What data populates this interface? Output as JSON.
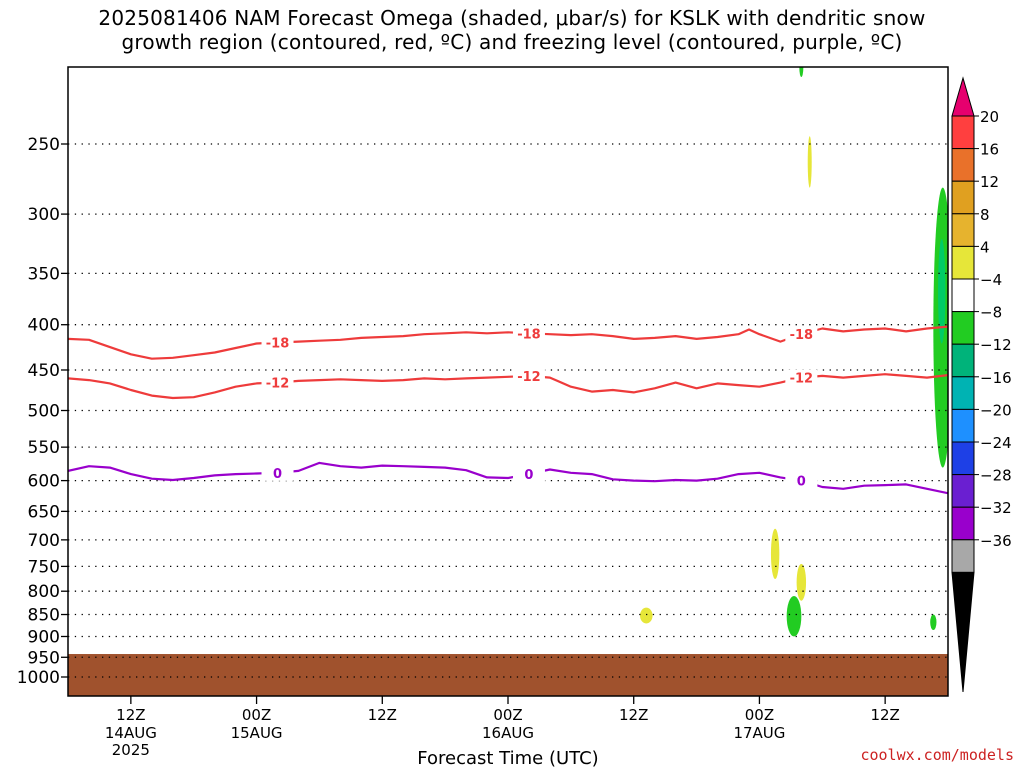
{
  "title": "2025081406 NAM Forecast Omega (shaded, μbar/s) for KSLK with dendritic snow\ngrowth region (contoured, red, ºC) and freezing level (contoured, purple, ºC)",
  "credit": "coolwx.com/models",
  "chart_data": {
    "type": "contour",
    "xlabel": "Forecast Time (UTC)",
    "ylabel": "",
    "y_scale": "log-pressure (hPa), inverted",
    "ylim": [
      1050,
      200
    ],
    "xlim_hours": [
      0,
      84
    ],
    "grid": true,
    "x_ticks": [
      {
        "hour": 6,
        "line1": "12Z",
        "line2": "14AUG",
        "line3": "2025"
      },
      {
        "hour": 18,
        "line1": "00Z",
        "line2": "15AUG",
        "line3": ""
      },
      {
        "hour": 30,
        "line1": "12Z",
        "line2": "",
        "line3": ""
      },
      {
        "hour": 42,
        "line1": "00Z",
        "line2": "16AUG",
        "line3": ""
      },
      {
        "hour": 54,
        "line1": "12Z",
        "line2": "",
        "line3": ""
      },
      {
        "hour": 66,
        "line1": "00Z",
        "line2": "17AUG",
        "line3": ""
      },
      {
        "hour": 78,
        "line1": "12Z",
        "line2": "",
        "line3": ""
      }
    ],
    "y_ticks": [
      250,
      300,
      350,
      400,
      450,
      500,
      550,
      600,
      650,
      700,
      750,
      800,
      850,
      900,
      950,
      1000
    ],
    "contours": [
      {
        "label": "-18",
        "color": "#ee3b3b",
        "points": [
          [
            0,
            415
          ],
          [
            2,
            416
          ],
          [
            4,
            424
          ],
          [
            6,
            432
          ],
          [
            8,
            437
          ],
          [
            10,
            436
          ],
          [
            12,
            433
          ],
          [
            14,
            430
          ],
          [
            16,
            425
          ],
          [
            18,
            420
          ],
          [
            20,
            419
          ],
          [
            22,
            418
          ],
          [
            24,
            417
          ],
          [
            26,
            416
          ],
          [
            28,
            414
          ],
          [
            30,
            413
          ],
          [
            32,
            412
          ],
          [
            34,
            410
          ],
          [
            36,
            409
          ],
          [
            38,
            408
          ],
          [
            40,
            409
          ],
          [
            42,
            408
          ],
          [
            44,
            409
          ],
          [
            46,
            410
          ],
          [
            48,
            411
          ],
          [
            50,
            410
          ],
          [
            52,
            412
          ],
          [
            54,
            415
          ],
          [
            56,
            414
          ],
          [
            58,
            412
          ],
          [
            60,
            415
          ],
          [
            62,
            413
          ],
          [
            64,
            410
          ],
          [
            65,
            405
          ],
          [
            66,
            410
          ],
          [
            68,
            418
          ],
          [
            70,
            410
          ],
          [
            72,
            404
          ],
          [
            74,
            407
          ],
          [
            76,
            405
          ],
          [
            78,
            404
          ],
          [
            80,
            407
          ],
          [
            82,
            404
          ],
          [
            84,
            402
          ]
        ]
      },
      {
        "label": "-12",
        "color": "#ee3b3b",
        "points": [
          [
            0,
            460
          ],
          [
            2,
            462
          ],
          [
            4,
            466
          ],
          [
            6,
            474
          ],
          [
            8,
            481
          ],
          [
            10,
            484
          ],
          [
            12,
            483
          ],
          [
            14,
            477
          ],
          [
            16,
            470
          ],
          [
            18,
            466
          ],
          [
            20,
            465
          ],
          [
            22,
            463
          ],
          [
            24,
            462
          ],
          [
            26,
            461
          ],
          [
            28,
            462
          ],
          [
            30,
            463
          ],
          [
            32,
            462
          ],
          [
            34,
            460
          ],
          [
            36,
            461
          ],
          [
            38,
            460
          ],
          [
            40,
            459
          ],
          [
            42,
            458
          ],
          [
            44,
            457
          ],
          [
            46,
            459
          ],
          [
            48,
            470
          ],
          [
            50,
            476
          ],
          [
            52,
            474
          ],
          [
            54,
            477
          ],
          [
            56,
            472
          ],
          [
            58,
            465
          ],
          [
            60,
            472
          ],
          [
            62,
            466
          ],
          [
            64,
            468
          ],
          [
            66,
            470
          ],
          [
            68,
            465
          ],
          [
            70,
            459
          ],
          [
            72,
            457
          ],
          [
            74,
            459
          ],
          [
            76,
            457
          ],
          [
            78,
            455
          ],
          [
            80,
            457
          ],
          [
            82,
            459
          ],
          [
            84,
            456
          ]
        ]
      },
      {
        "label": "0",
        "color": "#9900cc",
        "points": [
          [
            0,
            585
          ],
          [
            2,
            578
          ],
          [
            4,
            580
          ],
          [
            6,
            590
          ],
          [
            8,
            597
          ],
          [
            10,
            599
          ],
          [
            12,
            596
          ],
          [
            14,
            592
          ],
          [
            16,
            590
          ],
          [
            18,
            589
          ],
          [
            20,
            588
          ],
          [
            22,
            585
          ],
          [
            24,
            573
          ],
          [
            26,
            578
          ],
          [
            28,
            580
          ],
          [
            30,
            577
          ],
          [
            32,
            578
          ],
          [
            34,
            579
          ],
          [
            36,
            580
          ],
          [
            38,
            584
          ],
          [
            40,
            595
          ],
          [
            42,
            596
          ],
          [
            44,
            590
          ],
          [
            46,
            583
          ],
          [
            48,
            588
          ],
          [
            50,
            590
          ],
          [
            52,
            598
          ],
          [
            54,
            600
          ],
          [
            56,
            601
          ],
          [
            58,
            599
          ],
          [
            60,
            600
          ],
          [
            62,
            597
          ],
          [
            64,
            590
          ],
          [
            66,
            588
          ],
          [
            68,
            595
          ],
          [
            70,
            600
          ],
          [
            72,
            610
          ],
          [
            74,
            613
          ],
          [
            76,
            608
          ],
          [
            78,
            607
          ],
          [
            80,
            606
          ],
          [
            82,
            613
          ],
          [
            84,
            620
          ]
        ]
      }
    ],
    "shaded_regions": [
      {
        "color": "#e6e639",
        "center": [
          67.5,
          715
        ],
        "rx_hours": 0.4,
        "p_range": [
          680,
          775
        ]
      },
      {
        "color": "#e6e639",
        "center": [
          70.0,
          780
        ],
        "rx_hours": 0.45,
        "p_range": [
          745,
          820
        ]
      },
      {
        "color": "#e6e639",
        "center": [
          55.2,
          852
        ],
        "rx_hours": 0.6,
        "p_range": [
          835,
          870
        ]
      },
      {
        "color": "#e6e639",
        "center": [
          70.8,
          262
        ],
        "rx_hours": 0.15,
        "p_range": [
          245,
          280
        ]
      },
      {
        "color": "#22cc22",
        "center": [
          69.3,
          852
        ],
        "rx_hours": 0.7,
        "p_range": [
          810,
          900
        ]
      },
      {
        "color": "#22cc22",
        "center": [
          82.6,
          865
        ],
        "rx_hours": 0.3,
        "p_range": [
          850,
          885
        ]
      },
      {
        "color": "#22cc22",
        "center": [
          83.5,
          420
        ],
        "rx_hours": 0.9,
        "p_range": [
          280,
          580
        ]
      },
      {
        "color": "#00cc66",
        "center": [
          83.4,
          360
        ],
        "rx_hours": 0.35,
        "p_range": [
          320,
          420
        ]
      },
      {
        "color": "#22cc22",
        "center": [
          70.0,
          205
        ],
        "rx_hours": 0.1,
        "p_range": [
          200,
          210
        ]
      }
    ],
    "terrain": {
      "color": "#a0522d",
      "surface_pressure": 942
    }
  },
  "colorbar": {
    "labels": [
      "20",
      "16",
      "12",
      "8",
      "4",
      "−4",
      "−8",
      "−12",
      "−16",
      "−20",
      "−24",
      "−28",
      "−32",
      "−36"
    ],
    "colors": [
      "#ff3f3f",
      "#e9712a",
      "#e0a020",
      "#e6b32e",
      "#e6e639",
      "#ffffff",
      "#22cc22",
      "#00b37a",
      "#00b3b3",
      "#1e90ff",
      "#1e40e6",
      "#6a1fd1",
      "#9900cc",
      "#a8a8a8"
    ],
    "top_color": "#e6006e",
    "bottom_color": "#000000"
  }
}
